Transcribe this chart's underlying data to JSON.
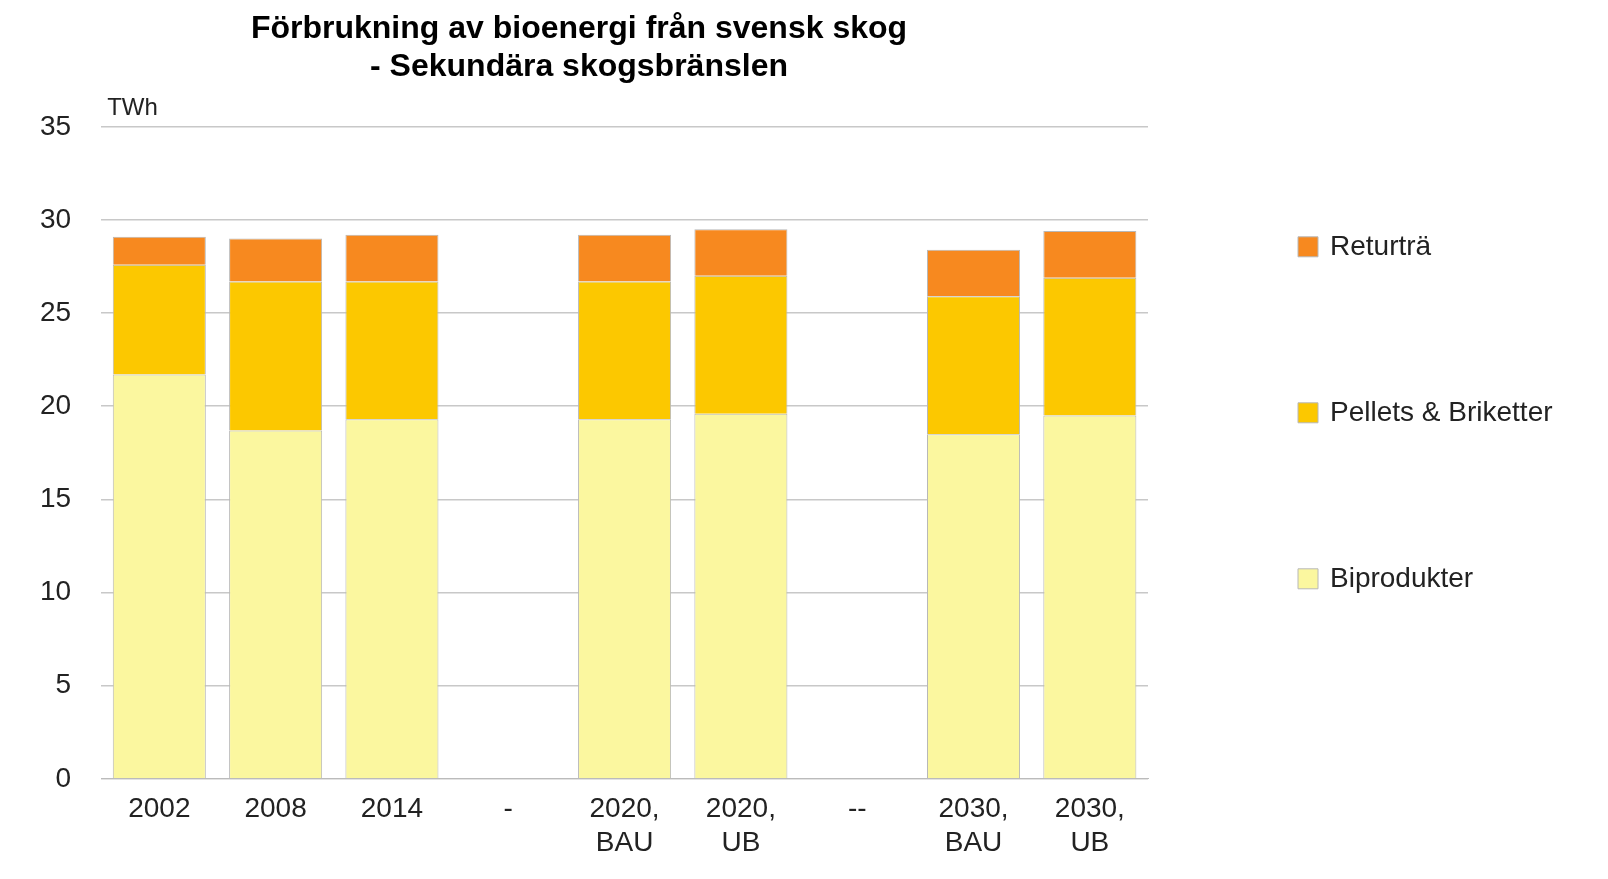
{
  "chart_data": {
    "type": "bar",
    "title": "Förbrukning av bioenergi från svensk skog",
    "subtitle": "- Sekundära skogsbränslen",
    "ylabel": "TWh",
    "categories": [
      "2002",
      "2008",
      "2014",
      "-",
      "2020, BAU",
      "2020, UB",
      "--",
      "2030, BAU",
      "2030, UB"
    ],
    "stacked": true,
    "series": [
      {
        "name": "Biprodukter",
        "color": "#fbf79f",
        "values": [
          21.7,
          18.7,
          19.3,
          null,
          19.3,
          19.6,
          null,
          18.5,
          19.5
        ]
      },
      {
        "name": "Pellets & Briketter",
        "color": "#fcc800",
        "values": [
          5.9,
          8.0,
          7.4,
          null,
          7.4,
          7.4,
          null,
          7.4,
          7.4
        ]
      },
      {
        "name": "Returträ",
        "color": "#f7891f",
        "values": [
          1.5,
          2.3,
          2.5,
          null,
          2.5,
          2.5,
          null,
          2.5,
          2.5
        ]
      }
    ],
    "ylim": [
      0,
      35
    ],
    "yticks": [
      0,
      5,
      10,
      15,
      20,
      25,
      30,
      35
    ],
    "grid": "y",
    "legend": "right"
  }
}
